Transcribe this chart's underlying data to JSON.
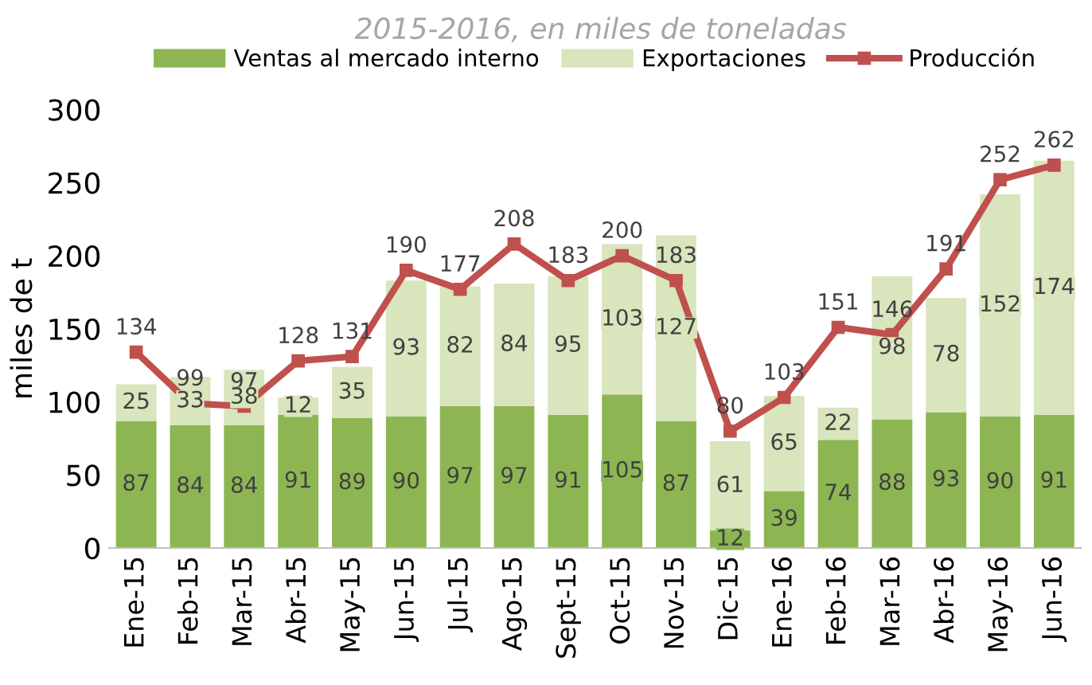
{
  "chart_data": {
    "type": "bar",
    "title": "2015-2016, en miles de toneladas",
    "ylabel": "miles de t",
    "categories": [
      "Ene-15",
      "Feb-15",
      "Mar-15",
      "Abr-15",
      "May-15",
      "Jun-15",
      "Jul-15",
      "Ago-15",
      "Sept-15",
      "Oct-15",
      "Nov-15",
      "Dic-15",
      "Ene-16",
      "Feb-16",
      "Mar-16",
      "Abr-16",
      "May-16",
      "Jun-16"
    ],
    "series": [
      {
        "name": "Ventas al mercado interno",
        "color": "#8db653",
        "values": [
          87,
          84,
          84,
          91,
          89,
          90,
          97,
          97,
          91,
          105,
          87,
          12,
          39,
          74,
          88,
          93,
          90,
          91
        ]
      },
      {
        "name": "Exportaciones",
        "color": "#d8e5bd",
        "values": [
          25,
          33,
          38,
          12,
          35,
          93,
          82,
          84,
          95,
          103,
          127,
          61,
          65,
          22,
          98,
          78,
          152,
          174
        ]
      },
      {
        "name": "Producción",
        "type": "line",
        "color": "#c0504d",
        "marker": "square",
        "values": [
          134,
          99,
          97,
          128,
          131,
          190,
          177,
          208,
          183,
          200,
          183,
          80,
          103,
          151,
          146,
          191,
          252,
          262
        ]
      }
    ],
    "stacked": true,
    "data_labels": true,
    "ylim": [
      0,
      300
    ],
    "yticks": [
      0,
      50,
      100,
      150,
      200,
      250,
      300
    ],
    "grid": false,
    "legend": "top"
  }
}
